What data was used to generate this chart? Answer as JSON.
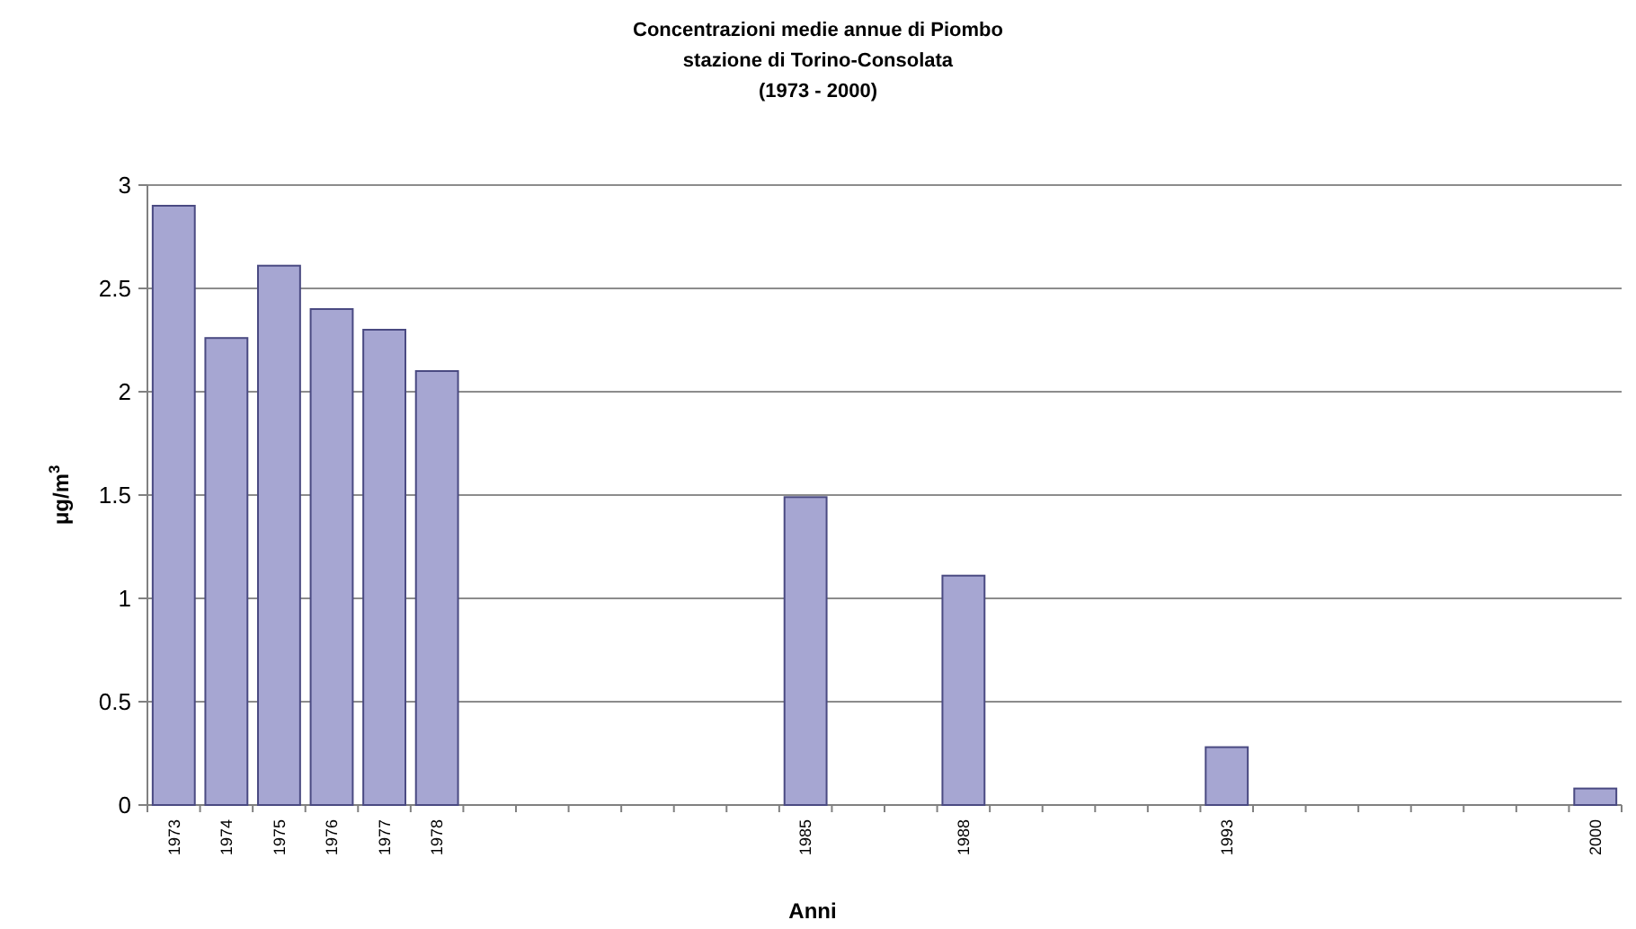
{
  "chart_data": {
    "type": "bar",
    "title": "Concentrazioni medie annue di Piombo\nstazione di Torino-Consolata\n(1973 - 2000)",
    "xlabel": "Anni",
    "ylabel": "μg/m$^{3}$",
    "categories": [
      "1973",
      "1974",
      "1975",
      "1976",
      "1977",
      "1978",
      null,
      null,
      null,
      null,
      null,
      null,
      "1985",
      null,
      null,
      "1988",
      null,
      null,
      null,
      null,
      "1993",
      null,
      null,
      null,
      null,
      null,
      null,
      "2000"
    ],
    "values": [
      2.9,
      2.26,
      2.61,
      2.4,
      2.3,
      2.1,
      null,
      null,
      null,
      null,
      null,
      null,
      1.49,
      null,
      null,
      1.11,
      null,
      null,
      null,
      null,
      0.28,
      null,
      null,
      null,
      null,
      null,
      null,
      0.08
    ],
    "color": "#a6a6d2",
    "ylim": [
      0,
      3
    ],
    "yticks": [
      0,
      0.5,
      1,
      1.5,
      2,
      2.5,
      3
    ],
    "grid": "y"
  }
}
